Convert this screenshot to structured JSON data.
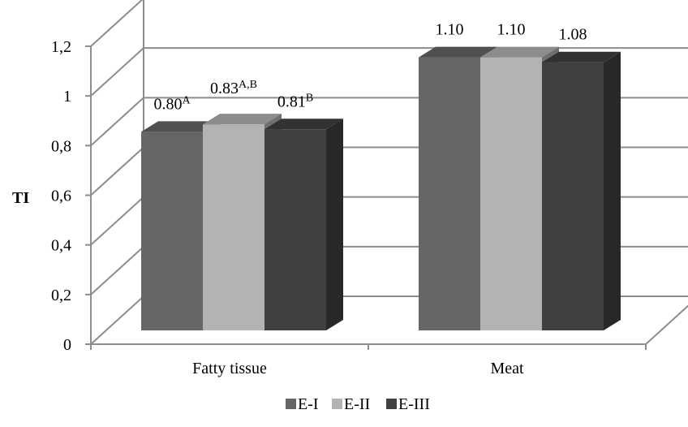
{
  "chart_data": {
    "type": "bar",
    "ylabel": "TI",
    "categories": [
      "Fatty tissue",
      "Meat"
    ],
    "yticks": [
      "0",
      "0,2",
      "0,4",
      "0,6",
      "0,8",
      "1",
      "1,2"
    ],
    "ylim": [
      0,
      1.2
    ],
    "grid": true,
    "legend_position": "bottom",
    "series": [
      {
        "name": "E-I",
        "values": [
          0.8,
          1.1
        ],
        "color": "#666666"
      },
      {
        "name": "E-II",
        "values": [
          0.83,
          1.1
        ],
        "color": "#b3b3b3"
      },
      {
        "name": "E-III",
        "values": [
          0.81,
          1.08
        ],
        "color": "#404040"
      }
    ],
    "data_labels": [
      [
        {
          "text": "0.80",
          "sup": "A"
        },
        {
          "text": "1.10",
          "sup": ""
        }
      ],
      [
        {
          "text": "0.83",
          "sup": "A,B"
        },
        {
          "text": "1.10",
          "sup": ""
        }
      ],
      [
        {
          "text": "0.81",
          "sup": "B"
        },
        {
          "text": "1.08",
          "sup": ""
        }
      ]
    ]
  }
}
